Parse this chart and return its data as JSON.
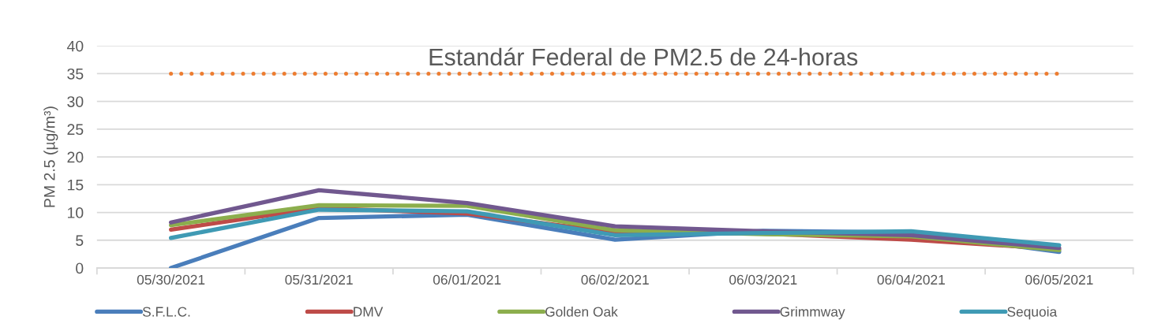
{
  "chart_data": {
    "type": "line",
    "ylabel": "PM 2.5 (µg/m³)",
    "categories": [
      "05/30/2021",
      "05/31/2021",
      "06/01/2021",
      "06/02/2021",
      "06/03/2021",
      "06/04/2021",
      "06/05/2021"
    ],
    "series": [
      {
        "name": "S.F.L.C.",
        "color": "#4a7ebb",
        "values": [
          0,
          9.0,
          9.6,
          5.1,
          6.7,
          6.4,
          2.9
        ]
      },
      {
        "name": "DMV",
        "color": "#be4b48",
        "values": [
          6.9,
          10.8,
          9.8,
          6.4,
          6.2,
          5.1,
          3.4
        ]
      },
      {
        "name": "Golden Oak",
        "color": "#8cae4d",
        "values": [
          7.7,
          11.3,
          11.2,
          6.8,
          6.1,
          5.7,
          3.2
        ]
      },
      {
        "name": "Grimmway",
        "color": "#71588f",
        "values": [
          8.2,
          14.0,
          11.7,
          7.5,
          6.6,
          5.9,
          3.6
        ]
      },
      {
        "name": "Sequoia",
        "color": "#3f9ab4",
        "values": [
          5.4,
          10.5,
          10.2,
          5.9,
          6.3,
          6.6,
          4.1
        ]
      }
    ],
    "ylim": [
      0,
      40
    ],
    "yticks": [
      0,
      5,
      10,
      15,
      20,
      25,
      30,
      35,
      40
    ],
    "grid": "y",
    "legend": "bottom",
    "line_style": "solid",
    "ref_lines": [
      {
        "axis": "y",
        "value": 35,
        "label": "Estandár Federal de PM2.5 de 24-horas",
        "color": "#ed7d31",
        "line_style": "dotted"
      }
    ]
  }
}
